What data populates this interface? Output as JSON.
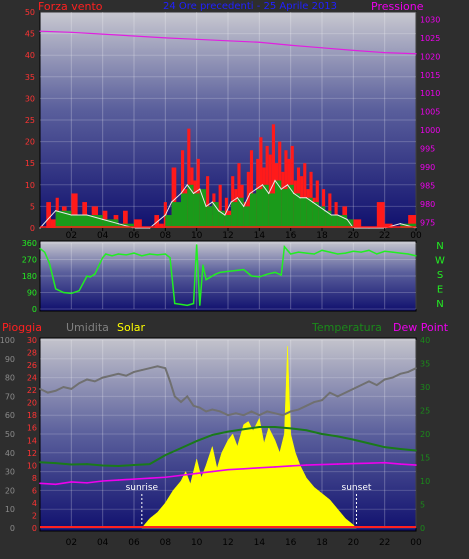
{
  "header": {
    "left_label": "Forza vento",
    "center_label": "24 Ore precedenti - 25 Aprile 2013",
    "right_label": "Pressione"
  },
  "lower_header": {
    "rain_label": "Pioggia",
    "humidity_label": "Umidita",
    "solar_label": "Solar",
    "temp_label": "Temperatura",
    "dew_label": "Dew Point"
  },
  "colors": {
    "background": "#2e2e2e",
    "wind_gust": "#ff1a1a",
    "wind_avg": "#1a9a1a",
    "wind_line": "#e8e8e8",
    "pressure": "#e020e0",
    "direction": "#22ee22",
    "humidity": "#707070",
    "solar": "#ffff00",
    "temperature": "#1a7a1a",
    "dewpoint": "#ee00ee",
    "rain": "#ff2020"
  },
  "chart_data": [
    {
      "type": "area",
      "name": "wind-pressure",
      "x_ticks": [
        "02",
        "04",
        "06",
        "08",
        "10",
        "12",
        "14",
        "16",
        "18",
        "20",
        "22",
        "00"
      ],
      "y_left": {
        "label": "Forza vento",
        "ticks": [
          0,
          5,
          10,
          15,
          20,
          25,
          30,
          35,
          40,
          45,
          50
        ],
        "range": [
          0,
          50
        ],
        "color": "#ff3333"
      },
      "y_right": {
        "label": "Pressione",
        "ticks": [
          975,
          980,
          985,
          990,
          995,
          1000,
          1005,
          1010,
          1015,
          1020,
          1025,
          1030
        ],
        "range": [
          973.5,
          1032
        ],
        "color": "#ee00ee"
      },
      "x_range": [
        0,
        24
      ],
      "series": [
        {
          "kind": "gust",
          "x": [
            0,
            0.4,
            0.7,
            1.0,
            1.2,
            1.4,
            1.7,
            2.0,
            2.4,
            2.7,
            3.0,
            3.3,
            3.7,
            4.0,
            4.3,
            4.7,
            5.0,
            5.3,
            5.6,
            6.0,
            6.5,
            7.0,
            7.3,
            7.6,
            7.9,
            8.1,
            8.4,
            8.7,
            9.0,
            9.2,
            9.4,
            9.6,
            9.8,
            10.0,
            10.2,
            10.4,
            10.6,
            10.8,
            11.0,
            11.2,
            11.4,
            11.6,
            11.8,
            12.0,
            12.2,
            12.4,
            12.6,
            12.8,
            13.0,
            13.2,
            13.4,
            13.6,
            13.8,
            14.0,
            14.2,
            14.4,
            14.6,
            14.8,
            15.0,
            15.2,
            15.4,
            15.6,
            15.8,
            16.0,
            16.2,
            16.4,
            16.6,
            16.8,
            17.0,
            17.2,
            17.4,
            17.6,
            17.8,
            18.0,
            18.2,
            18.4,
            18.6,
            18.8,
            19.0,
            19.3,
            19.6,
            20.0,
            20.5,
            21.0,
            21.5,
            22.0,
            22.5,
            23.0,
            23.5,
            24.0
          ],
          "values": [
            0,
            6,
            2,
            7,
            3,
            5,
            1,
            8,
            2,
            6,
            1,
            5,
            2,
            4,
            1,
            3,
            1,
            4,
            0,
            2,
            0,
            0,
            3,
            1,
            6,
            2,
            14,
            4,
            18,
            9,
            23,
            14,
            11,
            16,
            6,
            4,
            12,
            3,
            8,
            5,
            10,
            2,
            7,
            4,
            12,
            9,
            15,
            10,
            6,
            13,
            18,
            8,
            16,
            21,
            14,
            19,
            17,
            24,
            15,
            20,
            13,
            18,
            16,
            19,
            11,
            14,
            12,
            15,
            9,
            13,
            7,
            11,
            4,
            9,
            3,
            8,
            2,
            6,
            3,
            5,
            1,
            2,
            0,
            0,
            6,
            1,
            0,
            0,
            3,
            0
          ]
        },
        {
          "kind": "average",
          "x": [
            0,
            1.0,
            2.0,
            3.0,
            4.0,
            5.0,
            6.0,
            7.0,
            8.0,
            8.4,
            9.0,
            9.4,
            9.8,
            10.2,
            10.6,
            11.0,
            11.4,
            11.8,
            12.2,
            12.6,
            13.0,
            13.4,
            13.8,
            14.2,
            14.6,
            15.0,
            15.4,
            15.8,
            16.2,
            16.6,
            17.0,
            17.4,
            17.8,
            18.2,
            18.6,
            19.0,
            19.6,
            20.0,
            21.0,
            22.0,
            23.0,
            24.0
          ],
          "values": [
            0,
            4,
            3,
            3,
            2,
            1,
            0,
            0,
            3,
            6,
            8,
            10,
            8,
            9,
            5,
            6,
            4,
            3,
            6,
            7,
            5,
            8,
            9,
            10,
            8,
            11,
            9,
            10,
            8,
            7,
            7,
            6,
            5,
            4,
            3,
            3,
            2,
            0,
            0,
            0,
            1,
            0
          ]
        },
        {
          "kind": "pressure",
          "x": [
            0,
            2,
            4,
            6,
            8,
            10,
            12,
            14,
            16,
            18,
            20,
            22,
            24
          ],
          "values": [
            1026.8,
            1026.5,
            1026.0,
            1025.5,
            1025.0,
            1024.6,
            1024.2,
            1023.8,
            1023.0,
            1022.3,
            1021.6,
            1021.0,
            1020.7
          ]
        }
      ]
    },
    {
      "type": "line",
      "name": "wind-direction",
      "x_range": [
        0,
        24
      ],
      "y_ticks": [
        0,
        90,
        180,
        270,
        360
      ],
      "y_range": [
        0,
        360
      ],
      "compass": [
        "N",
        "W",
        "S",
        "E",
        "N"
      ],
      "series": [
        {
          "name": "",
          "x": [
            0,
            0.3,
            0.6,
            1.0,
            1.5,
            2.0,
            2.5,
            3.0,
            3.2,
            3.5,
            4.0,
            4.2,
            4.6,
            5.0,
            5.5,
            6.0,
            6.5,
            7.0,
            7.5,
            8.0,
            8.3,
            8.6,
            9.0,
            9.4,
            9.8,
            10.0,
            10.2,
            10.4,
            10.6,
            10.8,
            11.0,
            11.2,
            11.5,
            12.0,
            12.5,
            13.0,
            13.5,
            14.0,
            14.5,
            15.0,
            15.4,
            15.6,
            15.8,
            16.0,
            16.5,
            17.0,
            17.5,
            18.0,
            18.5,
            19.0,
            19.5,
            20.0,
            20.5,
            21.0,
            21.5,
            22.0,
            22.5,
            23.0,
            23.5,
            24.0
          ],
          "values": [
            330,
            310,
            250,
            110,
            90,
            85,
            100,
            180,
            175,
            190,
            280,
            300,
            290,
            300,
            295,
            305,
            290,
            300,
            295,
            300,
            280,
            30,
            25,
            20,
            30,
            350,
            20,
            240,
            160,
            170,
            180,
            190,
            200,
            205,
            210,
            215,
            180,
            175,
            190,
            200,
            185,
            340,
            320,
            300,
            310,
            305,
            300,
            320,
            310,
            300,
            305,
            315,
            310,
            320,
            300,
            315,
            310,
            305,
            300,
            290
          ]
        }
      ]
    },
    {
      "type": "area",
      "name": "weather-multi",
      "x_range": [
        0,
        24
      ],
      "y_left_outer": {
        "label": "Umidita",
        "ticks": [
          0,
          10,
          20,
          30,
          40,
          50,
          60,
          70,
          80,
          90,
          100
        ],
        "range": [
          0,
          100
        ]
      },
      "y_left_inner": {
        "label": "Pioggia",
        "ticks": [
          0,
          2,
          4,
          6,
          8,
          10,
          12,
          14,
          16,
          18,
          20,
          22,
          24,
          26,
          28,
          30
        ],
        "range": [
          0,
          30
        ]
      },
      "y_right": {
        "label": "Temperatura",
        "ticks": [
          0,
          5,
          10,
          15,
          20,
          25,
          30,
          35,
          40
        ],
        "range": [
          0,
          40
        ]
      },
      "annotations": [
        "sunrise",
        "sunset"
      ],
      "series": [
        {
          "kind": "humidity",
          "x": [
            0,
            0.5,
            1.0,
            1.5,
            2.0,
            2.5,
            3.0,
            3.5,
            4.0,
            4.5,
            5.0,
            5.5,
            6.0,
            6.5,
            7.0,
            7.5,
            8.0,
            8.3,
            8.6,
            9.0,
            9.4,
            9.8,
            10.2,
            10.6,
            11.0,
            11.5,
            12.0,
            12.5,
            13.0,
            13.5,
            14.0,
            14.5,
            15.0,
            15.5,
            16.0,
            16.5,
            17.0,
            17.5,
            18.0,
            18.5,
            19.0,
            19.5,
            20.0,
            20.5,
            21.0,
            21.5,
            22.0,
            22.5,
            23.0,
            23.5,
            24.0
          ],
          "values": [
            74,
            72,
            73,
            75,
            74,
            77,
            79,
            78,
            80,
            81,
            82,
            81,
            83,
            84,
            85,
            86,
            85,
            78,
            70,
            67,
            70,
            65,
            64,
            62,
            63,
            62,
            60,
            61,
            60,
            62,
            60,
            62,
            61,
            60,
            62,
            63,
            65,
            67,
            68,
            72,
            70,
            72,
            74,
            76,
            78,
            76,
            79,
            80,
            82,
            83,
            85
          ]
        },
        {
          "kind": "temperature",
          "x": [
            0,
            1,
            2,
            3,
            4,
            5,
            6,
            7,
            8,
            9,
            10,
            11,
            12,
            13,
            14,
            15,
            16,
            17,
            18,
            19,
            20,
            21,
            22,
            23,
            24
          ],
          "values": [
            14.0,
            13.8,
            13.5,
            13.6,
            13.3,
            13.2,
            13.4,
            13.6,
            15.5,
            17.0,
            18.5,
            19.8,
            20.5,
            21.0,
            21.5,
            21.5,
            21.2,
            20.8,
            20.0,
            19.5,
            18.8,
            18.0,
            17.2,
            16.8,
            16.5
          ]
        },
        {
          "kind": "dewpoint",
          "x": [
            0,
            1,
            2,
            3,
            4,
            5,
            6,
            7,
            8,
            9,
            10,
            11,
            12,
            13,
            14,
            15,
            16,
            17,
            18,
            19,
            20,
            21,
            22,
            23,
            24
          ],
          "values": [
            9.5,
            9.3,
            9.8,
            9.6,
            10.0,
            10.2,
            10.4,
            10.6,
            10.8,
            11.2,
            11.6,
            12.0,
            12.4,
            12.6,
            12.8,
            13.0,
            13.2,
            13.4,
            13.5,
            13.6,
            13.7,
            13.8,
            13.9,
            13.6,
            13.4
          ]
        },
        {
          "kind": "solar",
          "x": [
            6.5,
            7.0,
            7.5,
            8.0,
            8.5,
            9.0,
            9.3,
            9.6,
            10.0,
            10.3,
            10.6,
            11.0,
            11.3,
            11.6,
            12.0,
            12.3,
            12.6,
            13.0,
            13.3,
            13.6,
            14.0,
            14.3,
            14.6,
            15.0,
            15.3,
            15.6,
            15.8,
            16.0,
            16.3,
            16.6,
            17.0,
            17.5,
            18.0,
            18.5,
            19.0,
            19.5,
            20.0,
            20.2
          ],
          "values": [
            0,
            1.5,
            2.5,
            4.0,
            6.0,
            7.5,
            9.0,
            7.0,
            11.0,
            8.0,
            10.0,
            13.0,
            9.5,
            12.0,
            14.0,
            15.0,
            13.0,
            16.5,
            17.0,
            15.5,
            17.5,
            13.5,
            16.0,
            14.0,
            12.0,
            15.0,
            29.0,
            15.0,
            12.0,
            10.0,
            8.0,
            6.5,
            5.5,
            4.5,
            3.0,
            1.5,
            0.5,
            0
          ]
        },
        {
          "kind": "rain",
          "x": [
            0,
            24
          ],
          "values": [
            0,
            0
          ]
        }
      ]
    }
  ]
}
